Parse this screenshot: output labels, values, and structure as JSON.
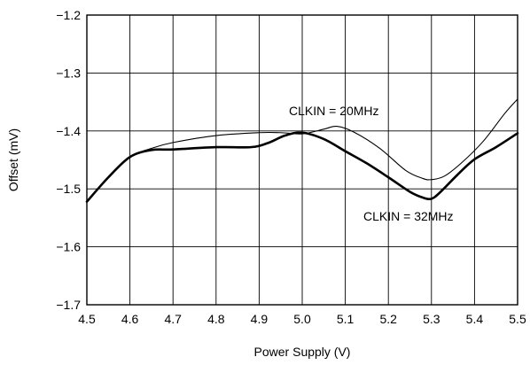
{
  "chart_data": {
    "type": "line",
    "title": "",
    "xlabel": "Power Supply (V)",
    "ylabel": "Offset (mV)",
    "xlim": [
      4.5,
      5.5
    ],
    "ylim": [
      -1.7,
      -1.2
    ],
    "xticks": [
      4.5,
      4.6,
      4.7,
      4.8,
      4.9,
      5.0,
      5.1,
      5.2,
      5.3,
      5.4,
      5.5
    ],
    "xtick_labels": [
      "4.5",
      "4.6",
      "4.7",
      "4.8",
      "4.9",
      "5.0",
      "5.1",
      "5.2",
      "5.3",
      "5.4",
      "5.5"
    ],
    "yticks": [
      -1.2,
      -1.3,
      -1.4,
      -1.5,
      -1.6,
      -1.7
    ],
    "ytick_labels": [
      "−1.2",
      "−1.3",
      "−1.4",
      "−1.5",
      "−1.6",
      "−1.7"
    ],
    "grid": true,
    "series": [
      {
        "name": "CLKIN = 20MHz",
        "color": "#000000",
        "line_weight": "thin",
        "x": [
          4.5,
          4.55,
          4.6,
          4.65,
          4.7,
          4.8,
          4.9,
          4.95,
          5.0,
          5.05,
          5.08,
          5.12,
          5.18,
          5.24,
          5.28,
          5.3,
          5.33,
          5.37,
          5.42,
          5.47,
          5.5
        ],
        "y": [
          -1.522,
          -1.48,
          -1.445,
          -1.43,
          -1.42,
          -1.408,
          -1.403,
          -1.403,
          -1.405,
          -1.397,
          -1.392,
          -1.402,
          -1.43,
          -1.468,
          -1.482,
          -1.484,
          -1.478,
          -1.455,
          -1.418,
          -1.37,
          -1.345
        ]
      },
      {
        "name": "CLKIN = 32MHz",
        "color": "#000000",
        "line_weight": "thick",
        "x": [
          4.5,
          4.55,
          4.6,
          4.65,
          4.7,
          4.8,
          4.88,
          4.92,
          4.96,
          5.0,
          5.05,
          5.1,
          5.15,
          5.2,
          5.25,
          5.28,
          5.3,
          5.32,
          5.36,
          5.4,
          5.45,
          5.5
        ],
        "y": [
          -1.522,
          -1.48,
          -1.445,
          -1.433,
          -1.432,
          -1.428,
          -1.428,
          -1.421,
          -1.408,
          -1.403,
          -1.414,
          -1.435,
          -1.456,
          -1.48,
          -1.505,
          -1.515,
          -1.517,
          -1.506,
          -1.476,
          -1.449,
          -1.428,
          -1.404
        ]
      }
    ],
    "annotations": [
      {
        "text": "CLKIN = 20MHz",
        "series": 0
      },
      {
        "text": "CLKIN = 32MHz",
        "series": 1
      }
    ]
  }
}
